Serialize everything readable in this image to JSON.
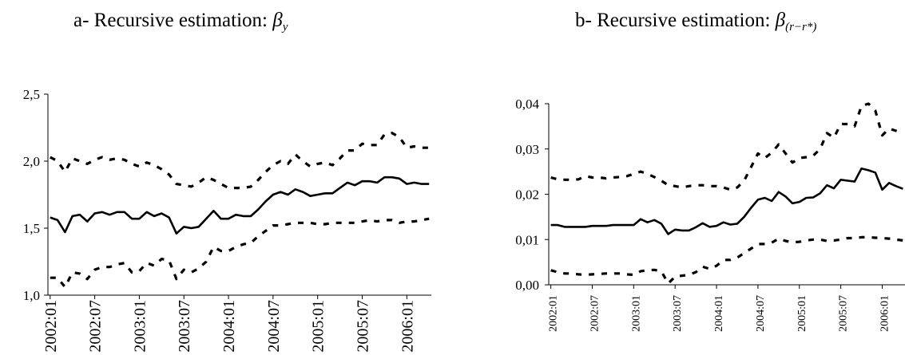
{
  "chart_data": [
    {
      "type": "line",
      "title": "a- Recursive estimation:",
      "title_symbol": "β",
      "title_subscript": "y",
      "xlabel": "",
      "ylabel": "",
      "ylim": [
        1.0,
        2.5
      ],
      "yticks": [
        "1,0",
        "1,5",
        "2,0",
        "2,5"
      ],
      "ytick_values": [
        1.0,
        1.5,
        2.0,
        2.5
      ],
      "x": [
        "2002:01",
        "2002:02",
        "2002:03",
        "2002:04",
        "2002:05",
        "2002:06",
        "2002:07",
        "2002:08",
        "2002:09",
        "2002:10",
        "2002:11",
        "2002:12",
        "2003:01",
        "2003:02",
        "2003:03",
        "2003:04",
        "2003:05",
        "2003:06",
        "2003:07",
        "2003:08",
        "2003:09",
        "2003:10",
        "2003:11",
        "2003:12",
        "2004:01",
        "2004:02",
        "2004:03",
        "2004:04",
        "2004:05",
        "2004:06",
        "2004:07",
        "2004:08",
        "2004:09",
        "2004:10",
        "2004:11",
        "2004:12",
        "2005:01",
        "2005:02",
        "2005:03",
        "2005:04",
        "2005:05",
        "2005:06",
        "2005:07",
        "2005:08",
        "2005:09",
        "2005:10",
        "2005:11",
        "2005:12",
        "2006:01",
        "2006:02",
        "2006:03",
        "2006:04"
      ],
      "xtick_labels": [
        "2002:01",
        "2002:07",
        "2003:01",
        "2003:07",
        "2004:01",
        "2004:07",
        "2005:01",
        "2005:07",
        "2006:01"
      ],
      "grid": false,
      "series": [
        {
          "style": "solid",
          "values": [
            1.58,
            1.56,
            1.47,
            1.59,
            1.6,
            1.55,
            1.61,
            1.62,
            1.6,
            1.62,
            1.62,
            1.57,
            1.57,
            1.62,
            1.59,
            1.61,
            1.58,
            1.46,
            1.51,
            1.5,
            1.51,
            1.57,
            1.63,
            1.57,
            1.57,
            1.6,
            1.59,
            1.59,
            1.64,
            1.7,
            1.75,
            1.77,
            1.75,
            1.79,
            1.77,
            1.74,
            1.75,
            1.76,
            1.76,
            1.8,
            1.84,
            1.82,
            1.85,
            1.85,
            1.84,
            1.88,
            1.88,
            1.87,
            1.83,
            1.84,
            1.83,
            1.83
          ]
        },
        {
          "style": "dashed",
          "values": [
            2.03,
            2.0,
            1.92,
            2.02,
            2.0,
            1.98,
            2.01,
            2.03,
            2.01,
            2.02,
            2.01,
            1.98,
            1.96,
            1.99,
            1.97,
            1.94,
            1.9,
            1.83,
            1.82,
            1.81,
            1.84,
            1.88,
            1.86,
            1.83,
            1.8,
            1.8,
            1.8,
            1.81,
            1.86,
            1.92,
            1.97,
            2.0,
            1.98,
            2.05,
            2.0,
            1.96,
            1.98,
            1.99,
            1.97,
            2.02,
            2.08,
            2.08,
            2.13,
            2.12,
            2.12,
            2.2,
            2.21,
            2.18,
            2.1,
            2.11,
            2.1,
            2.1
          ]
        },
        {
          "style": "dashed",
          "values": [
            1.13,
            1.13,
            1.06,
            1.17,
            1.16,
            1.12,
            1.19,
            1.21,
            1.21,
            1.23,
            1.24,
            1.17,
            1.18,
            1.24,
            1.22,
            1.27,
            1.26,
            1.12,
            1.19,
            1.17,
            1.2,
            1.25,
            1.36,
            1.33,
            1.33,
            1.36,
            1.38,
            1.39,
            1.44,
            1.48,
            1.52,
            1.52,
            1.53,
            1.54,
            1.54,
            1.54,
            1.53,
            1.53,
            1.54,
            1.54,
            1.54,
            1.54,
            1.55,
            1.56,
            1.55,
            1.56,
            1.56,
            1.54,
            1.55,
            1.55,
            1.56,
            1.57
          ]
        }
      ]
    },
    {
      "type": "line",
      "title": "b- Recursive estimation:",
      "title_symbol": "β",
      "title_subscript": "(r−r*)",
      "xlabel": "",
      "ylabel": "",
      "ylim": [
        0.0,
        0.04
      ],
      "yticks": [
        "0,00",
        "0,01",
        "0,02",
        "0,03",
        "0,04"
      ],
      "ytick_values": [
        0.0,
        0.01,
        0.02,
        0.03,
        0.04
      ],
      "x": [
        "2002:01",
        "2002:02",
        "2002:03",
        "2002:04",
        "2002:05",
        "2002:06",
        "2002:07",
        "2002:08",
        "2002:09",
        "2002:10",
        "2002:11",
        "2002:12",
        "2003:01",
        "2003:02",
        "2003:03",
        "2003:04",
        "2003:05",
        "2003:06",
        "2003:07",
        "2003:08",
        "2003:09",
        "2003:10",
        "2003:11",
        "2003:12",
        "2004:01",
        "2004:02",
        "2004:03",
        "2004:04",
        "2004:05",
        "2004:06",
        "2004:07",
        "2004:08",
        "2004:09",
        "2004:10",
        "2004:11",
        "2004:12",
        "2005:01",
        "2005:02",
        "2005:03",
        "2005:04",
        "2005:05",
        "2005:06",
        "2005:07",
        "2005:08",
        "2005:09",
        "2005:10",
        "2005:11",
        "2005:12",
        "2006:01",
        "2006:02",
        "2006:03",
        "2006:04"
      ],
      "xtick_labels": [
        "2002:01",
        "2002:07",
        "2003:01",
        "2003:07",
        "2004:01",
        "2004:07",
        "2005:01",
        "2005:07",
        "2006:01"
      ],
      "grid": false,
      "series": [
        {
          "style": "solid",
          "values": [
            0.0132,
            0.0132,
            0.0128,
            0.0128,
            0.0128,
            0.0128,
            0.013,
            0.013,
            0.013,
            0.0132,
            0.0132,
            0.0132,
            0.0132,
            0.0145,
            0.0138,
            0.0143,
            0.0135,
            0.0112,
            0.0122,
            0.012,
            0.012,
            0.0127,
            0.0136,
            0.0128,
            0.013,
            0.0138,
            0.0133,
            0.0135,
            0.015,
            0.017,
            0.0188,
            0.0192,
            0.0185,
            0.0205,
            0.0195,
            0.018,
            0.0183,
            0.0192,
            0.0193,
            0.0202,
            0.022,
            0.0213,
            0.0232,
            0.023,
            0.0228,
            0.0257,
            0.0253,
            0.0248,
            0.021,
            0.0225,
            0.0218,
            0.0212
          ]
        },
        {
          "style": "dashed",
          "values": [
            0.0237,
            0.0233,
            0.0232,
            0.0232,
            0.0233,
            0.024,
            0.0237,
            0.0237,
            0.0235,
            0.0237,
            0.0238,
            0.024,
            0.0245,
            0.025,
            0.0245,
            0.0238,
            0.023,
            0.022,
            0.0218,
            0.0215,
            0.0218,
            0.022,
            0.022,
            0.0218,
            0.0218,
            0.0215,
            0.021,
            0.0215,
            0.023,
            0.026,
            0.029,
            0.028,
            0.0292,
            0.031,
            0.029,
            0.027,
            0.028,
            0.0282,
            0.0285,
            0.03,
            0.0335,
            0.0325,
            0.0355,
            0.0355,
            0.035,
            0.0395,
            0.04,
            0.0385,
            0.033,
            0.0345,
            0.034,
            0.0335
          ]
        },
        {
          "style": "dashed",
          "values": [
            0.0032,
            0.0028,
            0.0025,
            0.0025,
            0.0023,
            0.0022,
            0.0023,
            0.0024,
            0.0025,
            0.0025,
            0.0025,
            0.0023,
            0.0022,
            0.003,
            0.0032,
            0.0033,
            0.003,
            0.0003,
            0.0018,
            0.002,
            0.0022,
            0.0028,
            0.004,
            0.0035,
            0.0042,
            0.0055,
            0.0055,
            0.006,
            0.007,
            0.008,
            0.009,
            0.009,
            0.0093,
            0.0102,
            0.0097,
            0.0094,
            0.0095,
            0.0098,
            0.01,
            0.01,
            0.0097,
            0.0098,
            0.01,
            0.0103,
            0.0103,
            0.0105,
            0.0105,
            0.0104,
            0.0103,
            0.0102,
            0.01,
            0.0098
          ]
        }
      ]
    }
  ]
}
